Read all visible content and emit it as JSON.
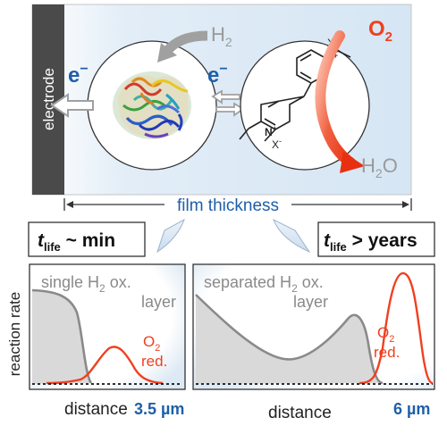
{
  "top_panel": {
    "electrode_label": "electrode",
    "h2_label": "H",
    "h2_sub": "2",
    "o2_label": "O",
    "o2_sub": "2",
    "h2o_label": "H",
    "h2o_sub": "2",
    "h2o_tail": "O",
    "electron_1": "e",
    "electron_2": "e",
    "electron_sup": "−",
    "charge_top": "X",
    "charge_bottom": "X",
    "charge_sup": "-",
    "nitrogen": "N",
    "nitrogen_charge": "+"
  },
  "film_thickness_label": "film thickness",
  "lifetime": {
    "left": {
      "t": "t",
      "sub": "life",
      "rest": " ~ min"
    },
    "right": {
      "t": "t",
      "sub": "life",
      "rest": " > years"
    }
  },
  "plots": {
    "y_label": "reaction rate",
    "x_label_left": "distance",
    "x_label_right": "distance",
    "left": {
      "title_line1_a": "single H",
      "title_line1_sub": "2",
      "title_line1_b": " ox.",
      "title_line2": "layer",
      "o2_label": "O",
      "o2_sub": "2",
      "red_label": "red.",
      "thickness": "3.5 µm"
    },
    "right": {
      "title_line1_a": "separated H",
      "title_line1_sub": "2",
      "title_line1_b": " ox.",
      "title_line2": "layer",
      "o2_label": "O",
      "o2_sub": "2",
      "red_label": "red.",
      "thickness": "6 µm"
    }
  },
  "colors": {
    "electron_blue": "#1f5fa8",
    "oxygen_red": "#f04020",
    "gray_text": "#9a9a9a",
    "electrode_dark": "#4a4a4a",
    "panel_blue": "#dbe9f5",
    "curve_gray": "#8a8a8a",
    "fill_gray": "#d9d9d9"
  }
}
